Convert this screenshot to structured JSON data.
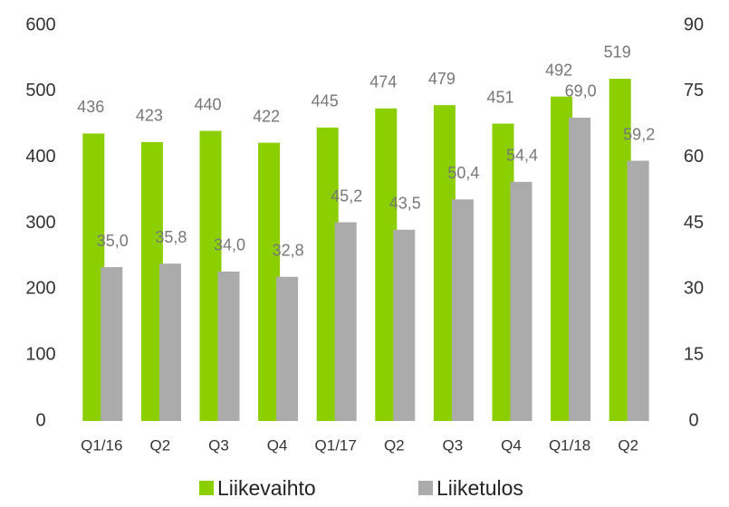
{
  "chart_data": {
    "type": "bar",
    "categories": [
      "Q1/16",
      "Q2",
      "Q3",
      "Q4",
      "Q1/17",
      "Q2",
      "Q3",
      "Q4",
      "Q1/18",
      "Q2"
    ],
    "series": [
      {
        "name": "Liikevaihto",
        "color": "#8ccf00",
        "values": [
          436,
          423,
          440,
          422,
          445,
          474,
          479,
          451,
          492,
          519
        ]
      },
      {
        "name": "Liiketulos",
        "color": "#ababab",
        "axis": "y2",
        "values": [
          35.0,
          35.8,
          34.0,
          32.8,
          45.2,
          43.5,
          50.4,
          54.4,
          69.0,
          59.2
        ],
        "value_labels": [
          "35,0",
          "35,8",
          "34,0",
          "32,8",
          "45,2",
          "43,5",
          "50,4",
          "54,4",
          "69,0",
          "59,2"
        ]
      }
    ],
    "ylim": [
      0,
      600
    ],
    "yticks": [
      0,
      100,
      200,
      300,
      400,
      500,
      600
    ],
    "y2lim": [
      0,
      90
    ],
    "y2ticks": [
      0,
      15,
      30,
      45,
      60,
      75,
      90
    ],
    "legend": "bottom"
  }
}
